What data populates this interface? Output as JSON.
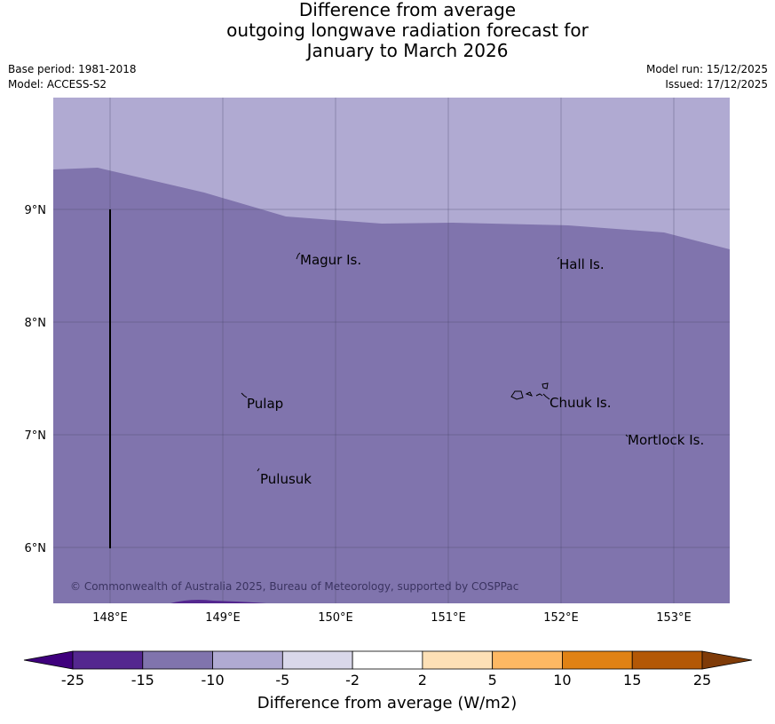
{
  "title": {
    "line1": "Difference from average",
    "line2": "outgoing longwave radiation forecast for",
    "line3": "January to March 2026"
  },
  "meta": {
    "base_period": "Base period: 1981-2018",
    "model": "Model: ACCESS-S2",
    "model_run": "Model run: 15/12/2025",
    "issued": "Issued: 17/12/2025"
  },
  "map": {
    "lon_labels": [
      "148°E",
      "149°E",
      "150°E",
      "151°E",
      "152°E",
      "153°E"
    ],
    "lat_labels": [
      "9°N",
      "8°N",
      "7°N",
      "6°N"
    ],
    "places": [
      "Magur Is.",
      "Hall Is.",
      "Pulap",
      "Chuuk Is.",
      "Mortlock Is.",
      "Pulusuk"
    ],
    "copyright": "© Commonwealth of Australia 2025, Bureau of Meteorology, supported by COSPPac",
    "colors": {
      "class_minus10_to_minus5": "#b0aad2",
      "class_minus15_to_minus10": "#8074ad",
      "class_minus25_to_minus15": "#54278f",
      "grid": "#444466",
      "coast": "#000000"
    }
  },
  "legend": {
    "tick_labels": [
      "-25",
      "-15",
      "-10",
      "-5",
      "-2",
      "2",
      "5",
      "10",
      "15",
      "25"
    ],
    "colors": [
      "#3f007d",
      "#54278f",
      "#8074ad",
      "#b0aad2",
      "#d9d8ea",
      "#ffffff",
      "#fde0b6",
      "#fdb863",
      "#e08214",
      "#b35806",
      "#7f3b08"
    ],
    "label": "Difference from average (W/m2)"
  }
}
